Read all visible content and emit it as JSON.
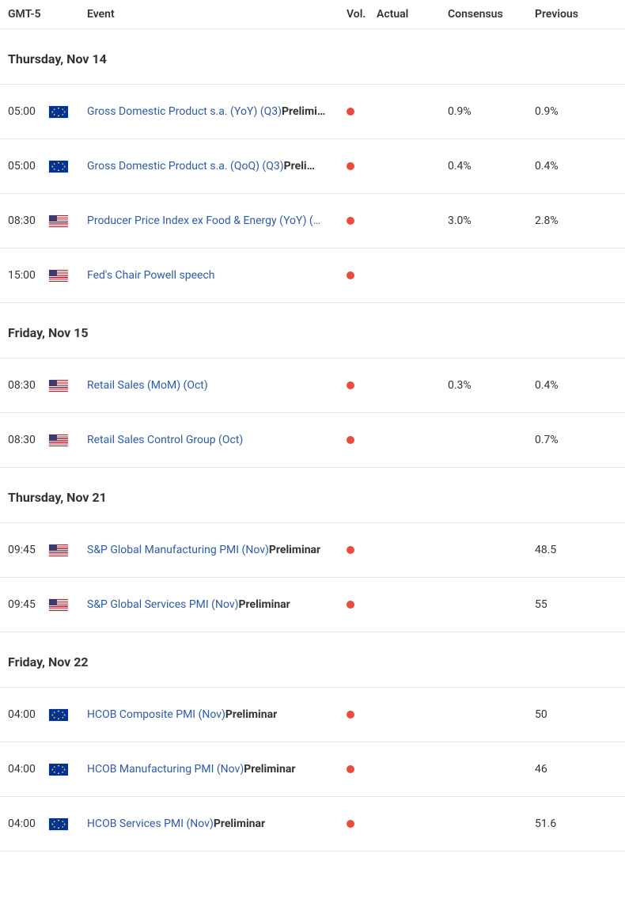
{
  "colors": {
    "link": "#2d5ca6",
    "text": "#333333",
    "border": "#e6e6e6",
    "vol_high": "#e74c3c",
    "background": "#ffffff"
  },
  "header": {
    "time": "GMT-5",
    "event": "Event",
    "vol": "Vol.",
    "actual": "Actual",
    "consensus": "Consensus",
    "previous": "Previous"
  },
  "groups": [
    {
      "date_label": "Thursday, Nov 14",
      "rows": [
        {
          "time": "05:00",
          "flag": "eu",
          "event": "Gross Domestic Product s.a. (YoY) (Q3)",
          "tag": "Prelimi…",
          "vol": "high",
          "actual": "",
          "consensus": "0.9%",
          "previous": "0.9%"
        },
        {
          "time": "05:00",
          "flag": "eu",
          "event": "Gross Domestic Product s.a. (QoQ) (Q3)",
          "tag": "Preli…",
          "vol": "high",
          "actual": "",
          "consensus": "0.4%",
          "previous": "0.4%"
        },
        {
          "time": "08:30",
          "flag": "us",
          "event": "Producer Price Index ex Food & Energy (YoY) (…",
          "tag": "",
          "vol": "high",
          "actual": "",
          "consensus": "3.0%",
          "previous": "2.8%"
        },
        {
          "time": "15:00",
          "flag": "us",
          "event": "Fed's Chair Powell speech",
          "tag": "",
          "vol": "high",
          "actual": "",
          "consensus": "",
          "previous": ""
        }
      ]
    },
    {
      "date_label": "Friday, Nov 15",
      "rows": [
        {
          "time": "08:30",
          "flag": "us",
          "event": "Retail Sales (MoM) (Oct)",
          "tag": "",
          "vol": "high",
          "actual": "",
          "consensus": "0.3%",
          "previous": "0.4%"
        },
        {
          "time": "08:30",
          "flag": "us",
          "event": "Retail Sales Control Group (Oct)",
          "tag": "",
          "vol": "high",
          "actual": "",
          "consensus": "",
          "previous": "0.7%"
        }
      ]
    },
    {
      "date_label": "Thursday, Nov 21",
      "rows": [
        {
          "time": "09:45",
          "flag": "us",
          "event": "S&P Global Manufacturing PMI (Nov)",
          "tag": "Preliminar",
          "vol": "high",
          "actual": "",
          "consensus": "",
          "previous": "48.5"
        },
        {
          "time": "09:45",
          "flag": "us",
          "event": "S&P Global Services PMI (Nov)",
          "tag": "Preliminar",
          "vol": "high",
          "actual": "",
          "consensus": "",
          "previous": "55"
        }
      ]
    },
    {
      "date_label": "Friday, Nov 22",
      "rows": [
        {
          "time": "04:00",
          "flag": "eu",
          "event": "HCOB Composite PMI (Nov)",
          "tag": "Preliminar",
          "vol": "high",
          "actual": "",
          "consensus": "",
          "previous": "50"
        },
        {
          "time": "04:00",
          "flag": "eu",
          "event": "HCOB Manufacturing PMI (Nov)",
          "tag": "Preliminar",
          "vol": "high",
          "actual": "",
          "consensus": "",
          "previous": "46"
        },
        {
          "time": "04:00",
          "flag": "eu",
          "event": "HCOB Services PMI (Nov)",
          "tag": "Preliminar",
          "vol": "high",
          "actual": "",
          "consensus": "",
          "previous": "51.6"
        }
      ]
    }
  ]
}
